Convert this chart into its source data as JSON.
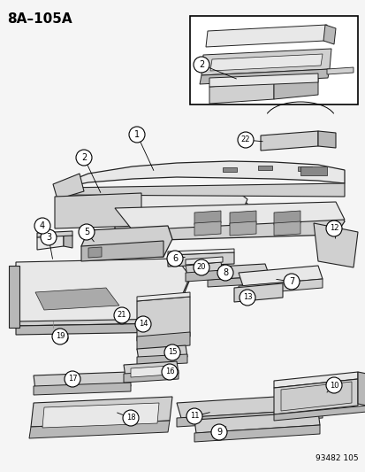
{
  "title": "8A–105A",
  "background_color": "#f5f5f5",
  "part_number": "93482 105",
  "figure_width": 4.14,
  "figure_height": 5.33,
  "dpi": 100
}
